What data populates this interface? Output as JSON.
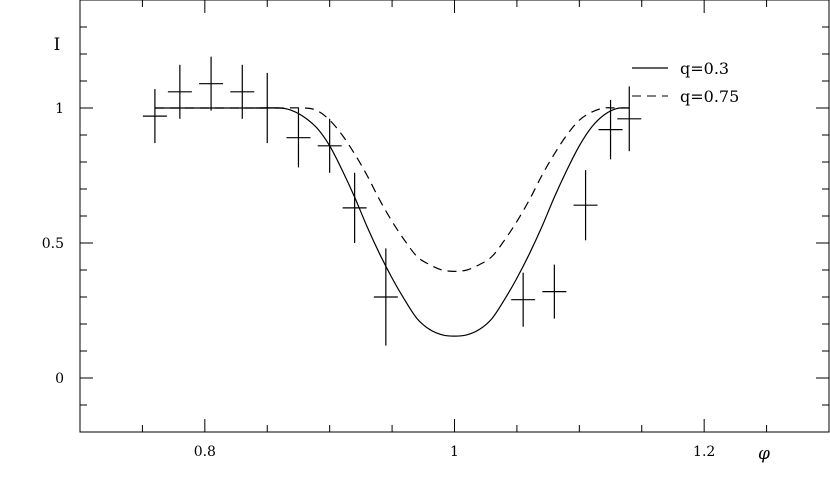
{
  "chart_data": {
    "type": "line",
    "xlabel": "φ",
    "ylabel": "I",
    "xlim": [
      0.7,
      1.3
    ],
    "ylim": [
      -0.2,
      1.4
    ],
    "x_ticks_labeled": [
      0.8,
      1,
      1.2
    ],
    "x_tick_labels": [
      "0.8",
      "1",
      "1.2"
    ],
    "y_ticks_labeled": [
      0,
      0.5,
      1
    ],
    "y_tick_labels": [
      "0",
      "0.5",
      "1"
    ],
    "grid": false,
    "legend_position": "top-right",
    "series": [
      {
        "name": "q=0.3",
        "style": "solid",
        "color": "#000000",
        "x": [
          0.76,
          0.8,
          0.84,
          0.86,
          0.87,
          0.88,
          0.89,
          0.9,
          0.91,
          0.92,
          0.93,
          0.94,
          0.95,
          0.96,
          0.97,
          0.98,
          0.99,
          1.0,
          1.01,
          1.02,
          1.03,
          1.04,
          1.05,
          1.06,
          1.07,
          1.08,
          1.09,
          1.1,
          1.11,
          1.12,
          1.13,
          1.14
        ],
        "y": [
          1.0,
          1.0,
          1.0,
          1.0,
          0.99,
          0.965,
          0.925,
          0.86,
          0.77,
          0.67,
          0.56,
          0.46,
          0.37,
          0.29,
          0.22,
          0.18,
          0.16,
          0.155,
          0.16,
          0.18,
          0.22,
          0.29,
          0.37,
          0.46,
          0.56,
          0.67,
          0.77,
          0.86,
          0.93,
          0.975,
          0.998,
          1.0
        ]
      },
      {
        "name": "q=0.75",
        "style": "dashed",
        "color": "#000000",
        "x": [
          0.76,
          0.8,
          0.84,
          0.86,
          0.88,
          0.89,
          0.9,
          0.91,
          0.92,
          0.93,
          0.94,
          0.95,
          0.96,
          0.97,
          0.98,
          0.99,
          1.0,
          1.01,
          1.02,
          1.03,
          1.04,
          1.05,
          1.06,
          1.07,
          1.08,
          1.09,
          1.1,
          1.11,
          1.12,
          1.13,
          1.14
        ],
        "y": [
          1.0,
          1.0,
          1.0,
          1.0,
          1.0,
          0.99,
          0.955,
          0.9,
          0.83,
          0.75,
          0.66,
          0.58,
          0.51,
          0.45,
          0.42,
          0.4,
          0.395,
          0.4,
          0.42,
          0.45,
          0.51,
          0.58,
          0.66,
          0.75,
          0.83,
          0.9,
          0.955,
          0.985,
          1.0,
          1.0,
          1.0
        ]
      }
    ],
    "error_points": [
      {
        "x": 0.76,
        "y": 0.97,
        "yerr": 0.1
      },
      {
        "x": 0.78,
        "y": 1.06,
        "yerr": 0.1
      },
      {
        "x": 0.805,
        "y": 1.09,
        "yerr": 0.1
      },
      {
        "x": 0.83,
        "y": 1.06,
        "yerr": 0.1
      },
      {
        "x": 0.85,
        "y": 1.0,
        "yerr": 0.13
      },
      {
        "x": 0.875,
        "y": 0.89,
        "yerr": 0.11
      },
      {
        "x": 0.9,
        "y": 0.86,
        "yerr": 0.1
      },
      {
        "x": 0.92,
        "y": 0.63,
        "yerr": 0.13
      },
      {
        "x": 0.945,
        "y": 0.3,
        "yerr": 0.18
      },
      {
        "x": 1.055,
        "y": 0.29,
        "yerr": 0.1
      },
      {
        "x": 1.08,
        "y": 0.32,
        "yerr": 0.1
      },
      {
        "x": 1.105,
        "y": 0.64,
        "yerr": 0.13
      },
      {
        "x": 1.125,
        "y": 0.92,
        "yerr": 0.11
      },
      {
        "x": 1.14,
        "y": 0.96,
        "yerr": 0.12
      }
    ]
  }
}
